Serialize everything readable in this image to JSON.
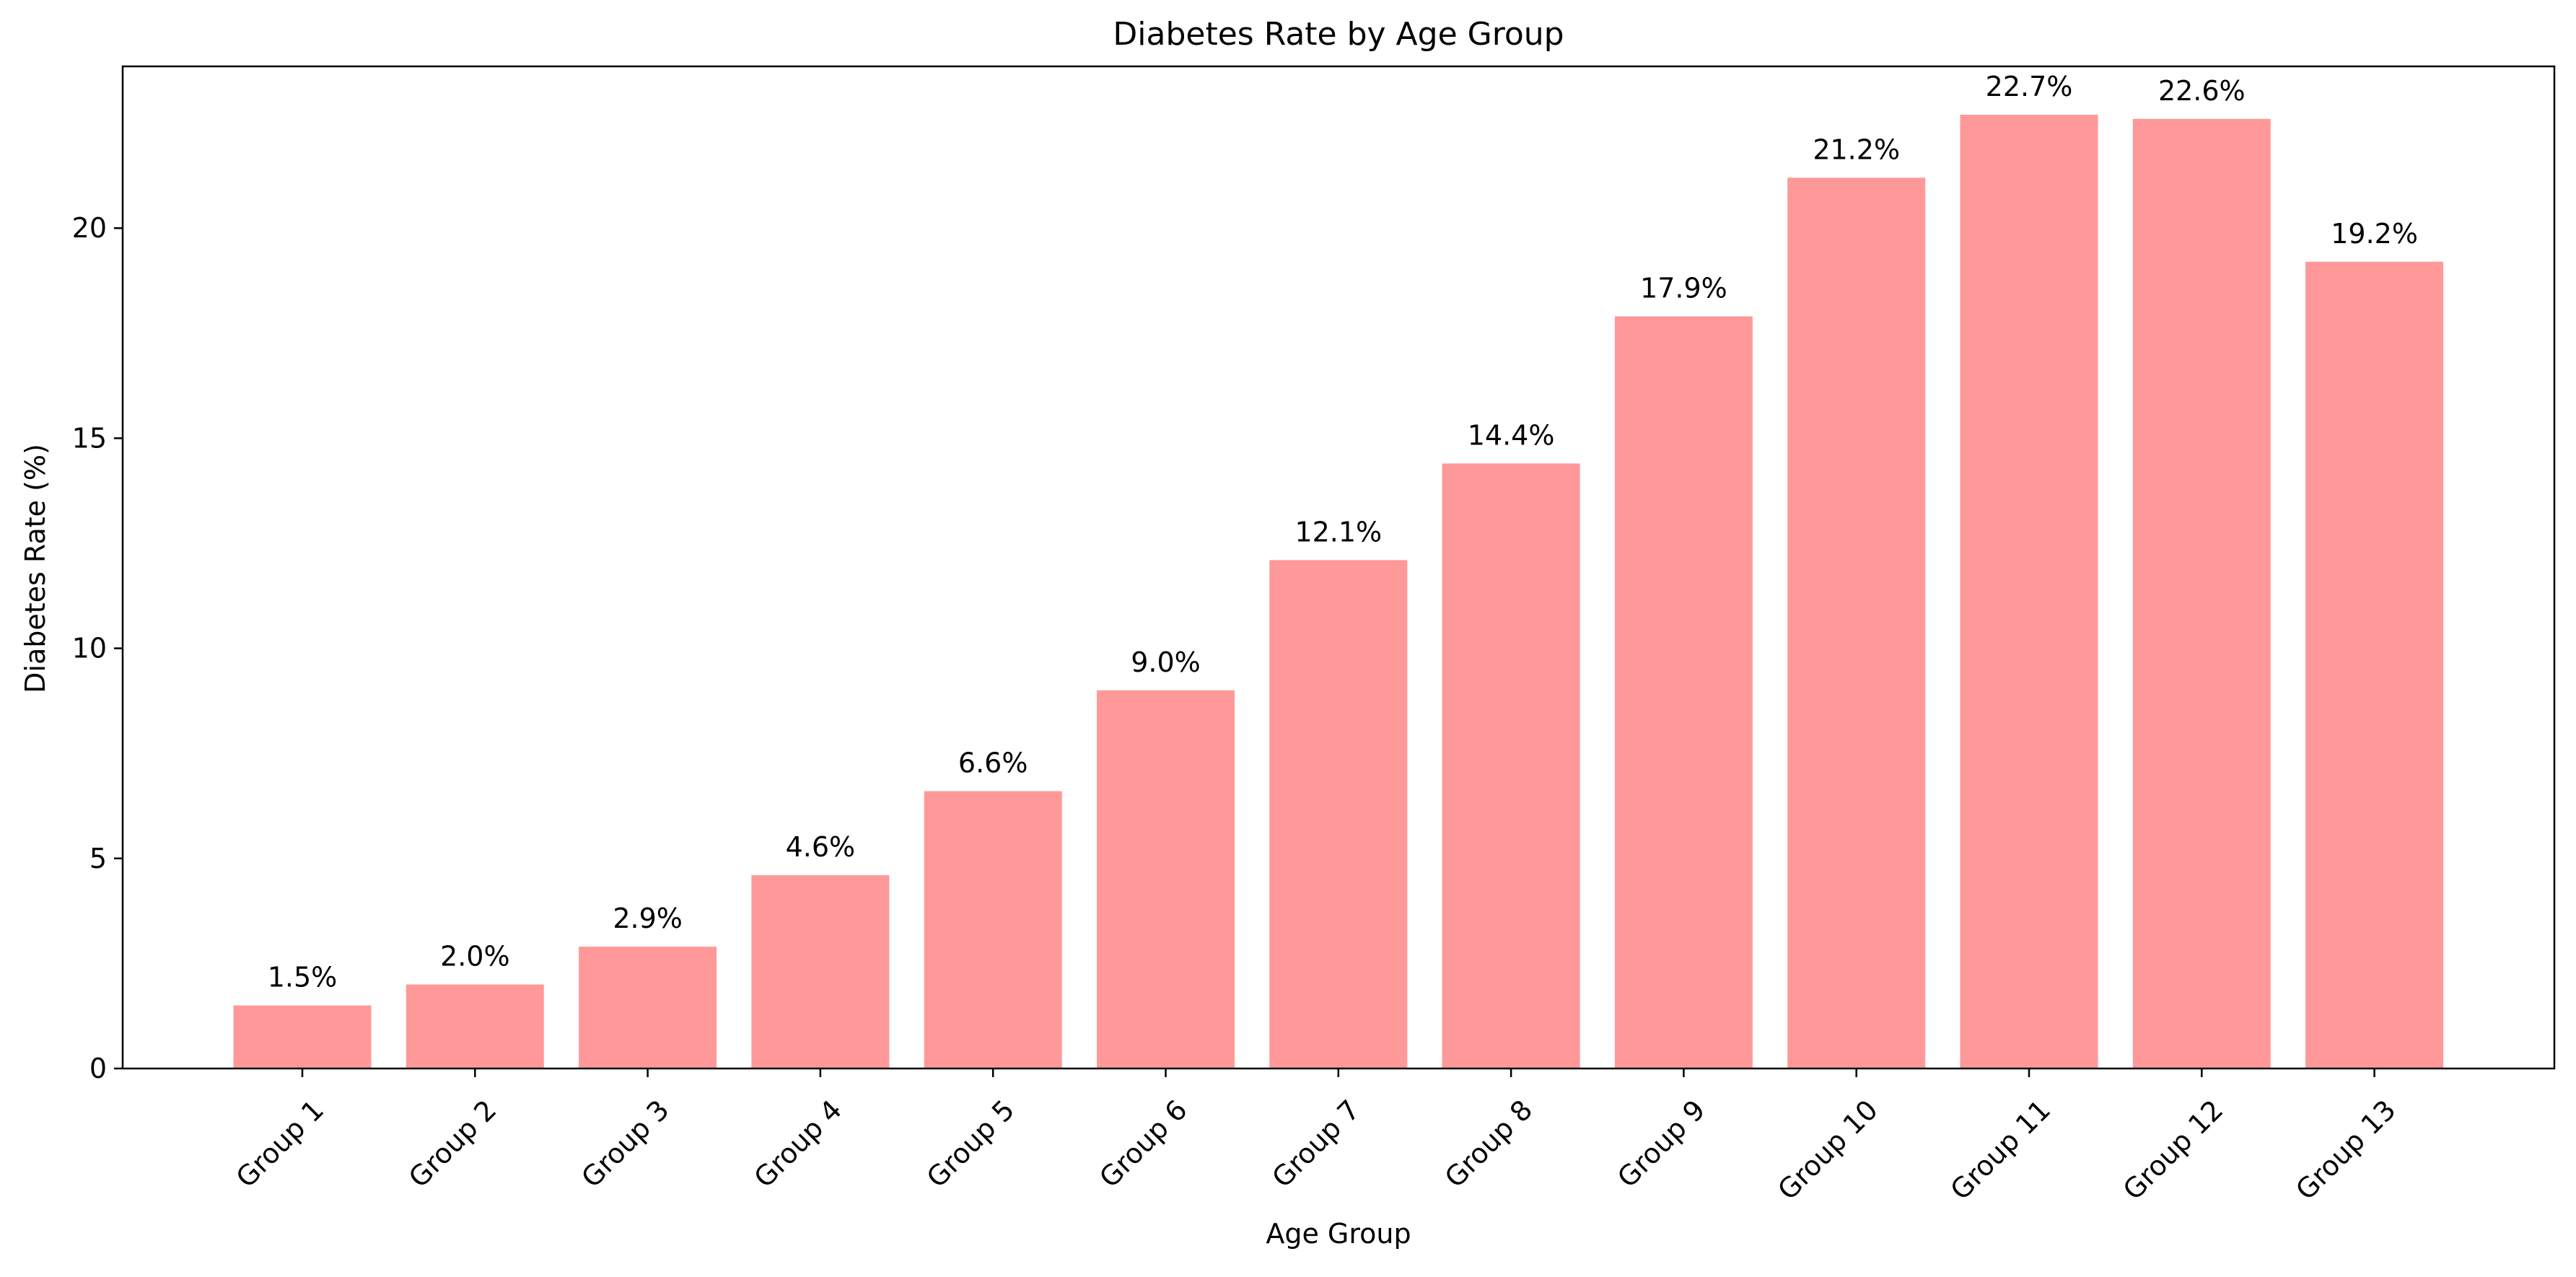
{
  "chart_data": {
    "type": "bar",
    "title": "Diabetes Rate by Age Group",
    "xlabel": "Age Group",
    "ylabel": "Diabetes Rate (%)",
    "categories": [
      "Group 1",
      "Group 2",
      "Group 3",
      "Group 4",
      "Group 5",
      "Group 6",
      "Group 7",
      "Group 8",
      "Group 9",
      "Group 10",
      "Group 11",
      "Group 12",
      "Group 13"
    ],
    "values": [
      1.5,
      2.0,
      2.9,
      4.6,
      6.6,
      9.0,
      12.1,
      14.4,
      17.9,
      21.2,
      22.7,
      22.6,
      19.2
    ],
    "value_labels": [
      "1.5%",
      "2.0%",
      "2.9%",
      "4.6%",
      "6.6%",
      "9.0%",
      "12.1%",
      "14.4%",
      "17.9%",
      "21.2%",
      "22.7%",
      "22.6%",
      "19.2%"
    ],
    "ylim": [
      0,
      23.85
    ],
    "yticks": [
      0,
      5,
      10,
      15,
      20
    ],
    "ytick_labels": [
      "0",
      "5",
      "10",
      "15",
      "20"
    ],
    "grid": false,
    "legend": "none",
    "bar_color": "#ff9999",
    "axis_color": "#000000"
  }
}
